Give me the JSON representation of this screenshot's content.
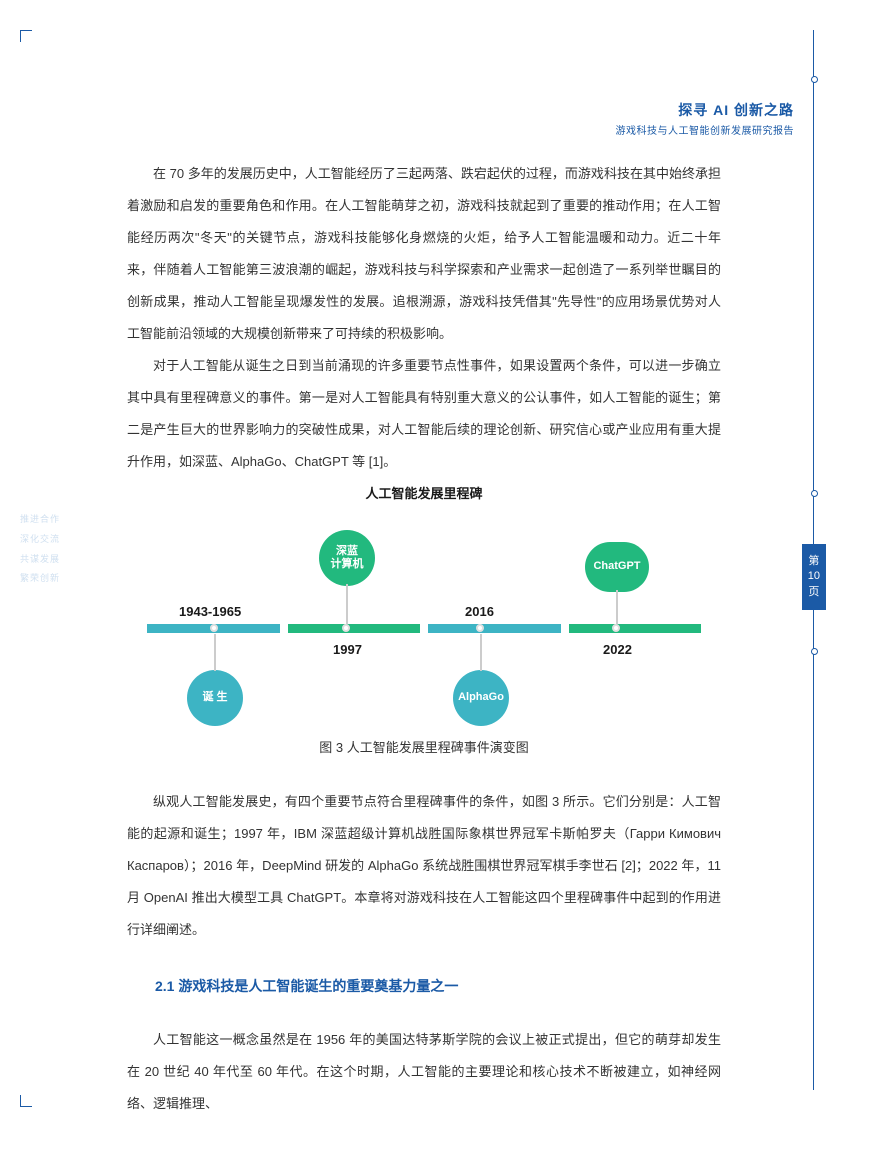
{
  "header": {
    "title": "探寻 AI 创新之路",
    "subtitle": "游戏科技与人工智能创新发展研究报告"
  },
  "pageNumber": {
    "top": "第",
    "num": "10",
    "bottom": "页"
  },
  "paragraphs": {
    "p1": "在 70 多年的发展历史中，人工智能经历了三起两落、跌宕起伏的过程，而游戏科技在其中始终承担着激励和启发的重要角色和作用。在人工智能萌芽之初，游戏科技就起到了重要的推动作用；在人工智能经历两次\"冬天\"的关键节点，游戏科技能够化身燃烧的火炬，给予人工智能温暖和动力。近二十年来，伴随着人工智能第三波浪潮的崛起，游戏科技与科学探索和产业需求一起创造了一系列举世瞩目的创新成果，推动人工智能呈现爆发性的发展。追根溯源，游戏科技凭借其\"先导性\"的应用场景优势对人工智能前沿领域的大规模创新带来了可持续的积极影响。",
    "p2": "对于人工智能从诞生之日到当前涌现的许多重要节点性事件，如果设置两个条件，可以进一步确立其中具有里程碑意义的事件。第一是对人工智能具有特别重大意义的公认事件，如人工智能的诞生；第二是产生巨大的世界影响力的突破性成果，对人工智能后续的理论创新、研究信心或产业应用有重大提升作用，如深蓝、AlphaGo、ChatGPT 等 [1]。",
    "p3": "纵观人工智能发展史，有四个重要节点符合里程碑事件的条件，如图 3 所示。它们分别是：人工智能的起源和诞生；1997 年，IBM 深蓝超级计算机战胜国际象棋世界冠军卡斯帕罗夫（Гарри Кимович Каспаров）；2016 年，DeepMind 研发的 AlphaGo 系统战胜围棋世界冠军棋手李世石 [2]；2022 年，11 月 OpenAI 推出大模型工具 ChatGPT。本章将对游戏科技在人工智能这四个里程碑事件中起到的作用进行详细阐述。",
    "p4": "人工智能这一概念虽然是在 1956 年的美国达特茅斯学院的会议上被正式提出，但它的萌芽却发生在 20 世纪 40 年代至 60 年代。在这个时期，人工智能的主要理论和核心技术不断被建立，如神经网络、逻辑推理、"
  },
  "sectionHeading": "2.1 游戏科技是人工智能诞生的重要奠基力量之一",
  "chart": {
    "title": "人工智能发展里程碑",
    "caption": "图 3 人工智能发展里程碑事件演变图",
    "segments": [
      {
        "color": "#3db4c4"
      },
      {
        "color": "#22b97e"
      },
      {
        "color": "#3db4c4"
      },
      {
        "color": "#22b97e"
      }
    ],
    "nodes": {
      "deepblue": {
        "label1": "深蓝",
        "label2": "计算机",
        "color": "#22b97e"
      },
      "chatgpt": {
        "label": "ChatGPT",
        "color": "#22b97e"
      },
      "birth": {
        "label": "诞 生",
        "color": "#3db4c4"
      },
      "alphago": {
        "label": "AlphaGo",
        "color": "#3db4c4"
      }
    },
    "years": {
      "range": "1943-1965",
      "y1997": "1997",
      "y2016": "2016",
      "y2022": "2022"
    },
    "dot_border": "#e0e0e0",
    "line_color": "#cccccc"
  },
  "sideFragments": [
    "推进合作",
    "深化交流",
    "共谋发展",
    "繁荣创新"
  ],
  "colors": {
    "primary": "#1b5aa6",
    "text": "#333333"
  }
}
